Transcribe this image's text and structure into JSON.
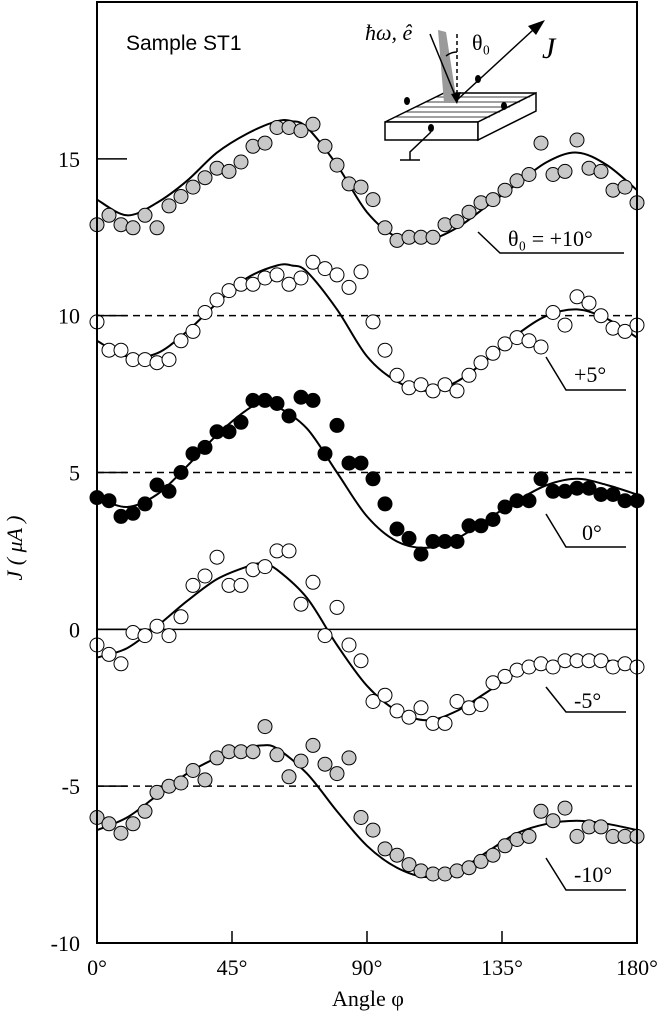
{
  "chart_data": {
    "type": "scatter",
    "title": "",
    "sample_label": "Sample ST1",
    "xlabel": "Angle φ",
    "ylabel": "J ( μA )",
    "xlim": [
      0,
      180
    ],
    "ylim": [
      -10,
      20
    ],
    "x_ticks": [
      {
        "value": 0,
        "label": "0°"
      },
      {
        "value": 45,
        "label": "45°"
      },
      {
        "value": 90,
        "label": "90°"
      },
      {
        "value": 135,
        "label": "135°"
      },
      {
        "value": 180,
        "label": "180°"
      }
    ],
    "y_ticks": [
      {
        "value": 15,
        "label": "15"
      },
      {
        "value": 10,
        "label": "10"
      },
      {
        "value": 5,
        "label": "5"
      },
      {
        "value": 0,
        "label": "0"
      },
      {
        "value": -5,
        "label": "-5"
      },
      {
        "value": -10,
        "label": "-10"
      }
    ],
    "reference_lines": [
      {
        "value": 10,
        "style": "dashed"
      },
      {
        "value": 5,
        "style": "dashed"
      },
      {
        "value": 0,
        "style": "solid"
      },
      {
        "value": -5,
        "style": "dashed"
      }
    ],
    "inset": {
      "beam_label": "ħω, ê",
      "angle_label": "θ₀",
      "current_label": "J"
    },
    "colors": {
      "gray_marker": "#c8c8c8",
      "black_marker": "#000000",
      "open_marker": "#ffffff"
    },
    "series": [
      {
        "name": "θ₀ = +10°",
        "marker": "gray",
        "x": [
          0,
          4,
          8,
          12,
          16,
          20,
          24,
          28,
          32,
          36,
          40,
          44,
          48,
          52,
          56,
          60,
          64,
          68,
          72,
          76,
          80,
          84,
          88,
          92,
          96,
          100,
          104,
          108,
          112,
          116,
          120,
          124,
          128,
          132,
          136,
          140,
          144,
          148,
          152,
          156,
          160,
          164,
          168,
          172,
          176,
          180
        ],
        "y": [
          12.9,
          13.2,
          12.9,
          12.8,
          13.2,
          12.8,
          13.5,
          13.8,
          14.1,
          14.4,
          14.7,
          14.6,
          14.9,
          15.4,
          15.5,
          16.0,
          16.0,
          15.9,
          16.1,
          15.4,
          14.8,
          14.2,
          14.1,
          13.7,
          12.8,
          12.4,
          12.5,
          12.5,
          12.5,
          12.9,
          13.0,
          13.3,
          13.6,
          13.7,
          14.0,
          14.3,
          14.5,
          15.5,
          14.5,
          14.6,
          15.6,
          14.7,
          14.6,
          14.0,
          14.1,
          13.6
        ],
        "fit": [
          [
            0,
            13.7
          ],
          [
            10,
            13.2
          ],
          [
            20,
            13.6
          ],
          [
            30,
            14.3
          ],
          [
            40,
            15.2
          ],
          [
            50,
            15.8
          ],
          [
            60,
            16.2
          ],
          [
            65,
            16.2
          ],
          [
            70,
            16.0
          ],
          [
            80,
            14.8
          ],
          [
            90,
            13.3
          ],
          [
            100,
            12.5
          ],
          [
            110,
            12.4
          ],
          [
            120,
            12.8
          ],
          [
            130,
            13.5
          ],
          [
            140,
            14.2
          ],
          [
            150,
            14.9
          ],
          [
            160,
            15.2
          ],
          [
            170,
            14.8
          ],
          [
            180,
            14.0
          ]
        ]
      },
      {
        "name": "+5°",
        "marker": "open",
        "x": [
          0,
          4,
          8,
          12,
          16,
          20,
          24,
          28,
          32,
          36,
          40,
          44,
          48,
          52,
          56,
          60,
          64,
          68,
          72,
          76,
          80,
          84,
          88,
          92,
          96,
          100,
          104,
          108,
          112,
          116,
          120,
          124,
          128,
          132,
          136,
          140,
          144,
          148,
          152,
          156,
          160,
          164,
          168,
          172,
          176,
          180
        ],
        "y": [
          9.8,
          8.9,
          8.9,
          8.6,
          8.6,
          8.5,
          8.6,
          9.2,
          9.5,
          10.1,
          10.5,
          10.8,
          11.0,
          11.0,
          11.2,
          11.3,
          11.0,
          11.2,
          11.7,
          11.5,
          11.3,
          10.9,
          11.4,
          9.8,
          8.9,
          8.1,
          7.7,
          7.8,
          7.6,
          7.8,
          7.6,
          8.1,
          8.5,
          8.8,
          9.1,
          9.3,
          9.2,
          9.0,
          10.1,
          9.7,
          10.6,
          10.4,
          10.0,
          9.6,
          9.5,
          9.7
        ],
        "fit": [
          [
            0,
            9.2
          ],
          [
            10,
            8.7
          ],
          [
            20,
            8.8
          ],
          [
            30,
            9.5
          ],
          [
            40,
            10.4
          ],
          [
            50,
            11.2
          ],
          [
            60,
            11.6
          ],
          [
            65,
            11.6
          ],
          [
            70,
            11.4
          ],
          [
            80,
            10.2
          ],
          [
            90,
            8.7
          ],
          [
            100,
            7.9
          ],
          [
            110,
            7.6
          ],
          [
            120,
            7.9
          ],
          [
            130,
            8.6
          ],
          [
            140,
            9.4
          ],
          [
            150,
            10.0
          ],
          [
            160,
            10.2
          ],
          [
            170,
            9.9
          ],
          [
            180,
            9.3
          ]
        ]
      },
      {
        "name": "0°",
        "marker": "black",
        "x": [
          0,
          4,
          8,
          12,
          16,
          20,
          24,
          28,
          32,
          36,
          40,
          44,
          48,
          52,
          56,
          60,
          64,
          68,
          72,
          76,
          80,
          84,
          88,
          92,
          96,
          100,
          104,
          108,
          112,
          116,
          120,
          124,
          128,
          132,
          136,
          140,
          144,
          148,
          152,
          156,
          160,
          164,
          168,
          172,
          176,
          180
        ],
        "y": [
          4.2,
          4.1,
          3.6,
          3.7,
          4.0,
          4.6,
          4.4,
          5.0,
          5.6,
          5.8,
          6.3,
          6.3,
          6.6,
          7.3,
          7.3,
          7.2,
          6.8,
          7.4,
          7.3,
          5.6,
          6.5,
          5.3,
          5.3,
          4.8,
          4.0,
          3.2,
          2.9,
          2.4,
          2.8,
          2.8,
          2.8,
          3.3,
          3.3,
          3.5,
          3.9,
          4.1,
          4.1,
          4.8,
          4.4,
          4.4,
          4.5,
          4.5,
          4.3,
          4.3,
          4.1,
          4.1
        ],
        "fit": [
          [
            0,
            4.2
          ],
          [
            10,
            3.9
          ],
          [
            20,
            4.3
          ],
          [
            30,
            5.2
          ],
          [
            40,
            6.2
          ],
          [
            50,
            7.0
          ],
          [
            55,
            7.2
          ],
          [
            60,
            7.1
          ],
          [
            70,
            6.4
          ],
          [
            80,
            5.0
          ],
          [
            90,
            3.6
          ],
          [
            100,
            2.8
          ],
          [
            110,
            2.6
          ],
          [
            120,
            2.9
          ],
          [
            130,
            3.5
          ],
          [
            140,
            4.1
          ],
          [
            150,
            4.6
          ],
          [
            160,
            4.8
          ],
          [
            170,
            4.6
          ],
          [
            180,
            4.3
          ]
        ]
      },
      {
        "name": "-5°",
        "marker": "open",
        "x": [
          0,
          4,
          8,
          12,
          16,
          20,
          24,
          28,
          32,
          36,
          40,
          44,
          48,
          52,
          56,
          60,
          64,
          68,
          72,
          76,
          80,
          84,
          88,
          92,
          96,
          100,
          104,
          108,
          112,
          116,
          120,
          124,
          128,
          132,
          136,
          140,
          144,
          148,
          152,
          156,
          160,
          164,
          168,
          172,
          176,
          180
        ],
        "y": [
          -0.5,
          -0.8,
          -1.1,
          -0.1,
          -0.2,
          0.1,
          -0.2,
          0.4,
          1.4,
          1.7,
          2.3,
          1.4,
          1.4,
          1.9,
          2.0,
          2.5,
          2.5,
          0.8,
          1.5,
          -0.2,
          0.7,
          -0.5,
          -1.0,
          -2.3,
          -2.1,
          -2.6,
          -2.8,
          -2.5,
          -3.0,
          -3.0,
          -2.3,
          -2.5,
          -2.4,
          -1.7,
          -1.5,
          -1.3,
          -1.2,
          -1.1,
          -1.2,
          -1.0,
          -1.0,
          -1.0,
          -1.0,
          -1.2,
          -1.1,
          -1.2
        ],
        "fit": [
          [
            0,
            -0.9
          ],
          [
            10,
            -0.6
          ],
          [
            20,
            0.1
          ],
          [
            30,
            0.9
          ],
          [
            40,
            1.6
          ],
          [
            50,
            2.0
          ],
          [
            55,
            2.1
          ],
          [
            60,
            1.9
          ],
          [
            70,
            1.0
          ],
          [
            80,
            -0.5
          ],
          [
            90,
            -1.8
          ],
          [
            100,
            -2.6
          ],
          [
            110,
            -2.9
          ],
          [
            120,
            -2.6
          ],
          [
            130,
            -2.0
          ],
          [
            140,
            -1.4
          ],
          [
            150,
            -1.1
          ],
          [
            160,
            -1.0
          ],
          [
            170,
            -1.0
          ],
          [
            180,
            -1.1
          ]
        ]
      },
      {
        "name": "-10°",
        "marker": "gray",
        "x": [
          0,
          4,
          8,
          12,
          16,
          20,
          24,
          28,
          32,
          36,
          40,
          44,
          48,
          52,
          56,
          60,
          64,
          68,
          72,
          76,
          80,
          84,
          88,
          92,
          96,
          100,
          104,
          108,
          112,
          116,
          120,
          124,
          128,
          132,
          136,
          140,
          144,
          148,
          152,
          156,
          160,
          164,
          168,
          172,
          176,
          180
        ],
        "y": [
          -6.0,
          -6.2,
          -6.5,
          -6.2,
          -5.8,
          -5.2,
          -5.0,
          -4.9,
          -4.5,
          -4.8,
          -4.1,
          -3.9,
          -3.9,
          -3.9,
          -3.1,
          -4.0,
          -4.7,
          -4.2,
          -3.7,
          -4.3,
          -4.6,
          -4.1,
          -6.0,
          -6.4,
          -7.0,
          -7.2,
          -7.5,
          -7.7,
          -7.8,
          -7.8,
          -7.7,
          -7.6,
          -7.4,
          -7.2,
          -6.9,
          -6.7,
          -6.6,
          -5.8,
          -6.1,
          -5.7,
          -6.6,
          -6.3,
          -6.3,
          -6.6,
          -6.6,
          -6.6
        ],
        "fit": [
          [
            0,
            -6.4
          ],
          [
            10,
            -6.0
          ],
          [
            20,
            -5.3
          ],
          [
            30,
            -4.6
          ],
          [
            40,
            -4.1
          ],
          [
            50,
            -3.8
          ],
          [
            55,
            -3.7
          ],
          [
            60,
            -3.8
          ],
          [
            70,
            -4.6
          ],
          [
            80,
            -5.8
          ],
          [
            90,
            -6.9
          ],
          [
            100,
            -7.6
          ],
          [
            110,
            -7.9
          ],
          [
            120,
            -7.7
          ],
          [
            130,
            -7.1
          ],
          [
            140,
            -6.5
          ],
          [
            150,
            -6.2
          ],
          [
            160,
            -6.1
          ],
          [
            170,
            -6.2
          ],
          [
            180,
            -6.4
          ]
        ]
      }
    ]
  }
}
